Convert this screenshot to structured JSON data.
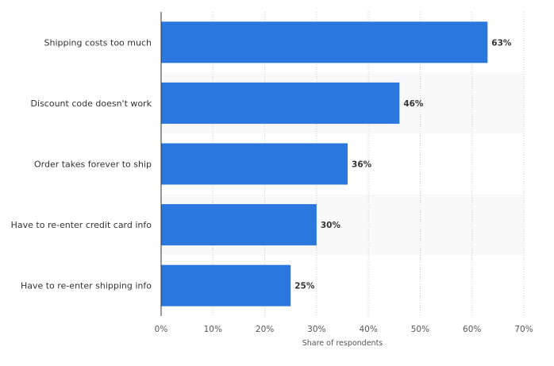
{
  "chart_data": {
    "type": "bar",
    "orientation": "horizontal",
    "categories": [
      "Shipping costs too much",
      "Discount code doesn't work",
      "Order takes forever to ship",
      "Have to re-enter credit card info",
      "Have to re-enter shipping info"
    ],
    "values": [
      63,
      46,
      36,
      30,
      25
    ],
    "value_labels": [
      "63%",
      "46%",
      "36%",
      "30%",
      "25%"
    ],
    "xlabel": "Share of respondents",
    "xlim": [
      0,
      70
    ],
    "x_ticks": [
      0,
      10,
      20,
      30,
      40,
      50,
      60,
      70
    ],
    "x_tick_labels": [
      "0%",
      "10%",
      "20%",
      "30%",
      "40%",
      "50%",
      "60%",
      "70%"
    ],
    "grid": "vertical dotted",
    "colors": {
      "bar": "#2a77de",
      "band": "#f9f9f9",
      "grid": "#cccccc",
      "axis": "#333333"
    }
  }
}
